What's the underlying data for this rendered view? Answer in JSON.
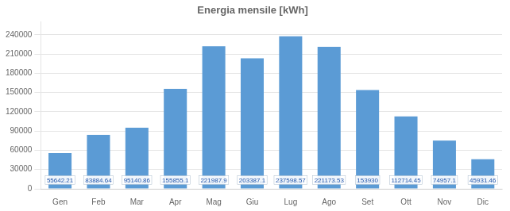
{
  "chart_data": {
    "type": "bar",
    "title": "Energia mensile [kWh]",
    "categories": [
      "Gen",
      "Feb",
      "Mar",
      "Apr",
      "Mag",
      "Giu",
      "Lug",
      "Ago",
      "Set",
      "Ott",
      "Nov",
      "Dic"
    ],
    "values": [
      55642.21,
      83884.64,
      95140.86,
      155855.1,
      221987.9,
      203387.1,
      237598.57,
      221173.53,
      153930,
      112714.45,
      74957.1,
      45931.46
    ],
    "color": "#5B9BD5",
    "ylim": [
      0,
      260000
    ],
    "yticks": [
      0,
      30000,
      60000,
      90000,
      120000,
      150000,
      180000,
      210000,
      240000
    ],
    "grid": true,
    "data_labels": true
  }
}
